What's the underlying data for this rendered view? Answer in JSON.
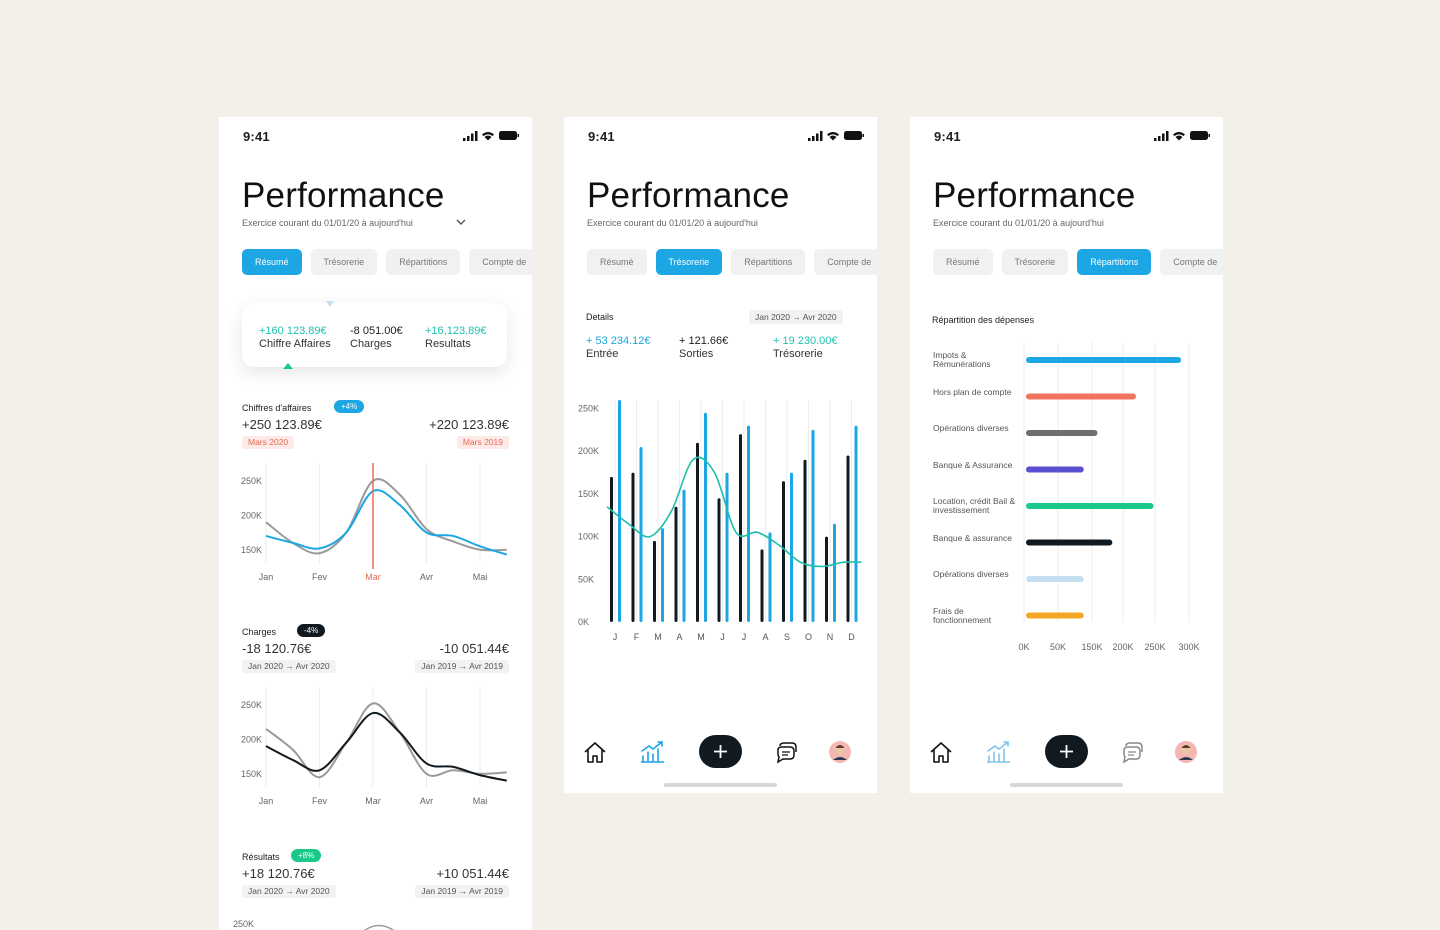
{
  "status_time": "9:41",
  "title": "Performance",
  "subtitle": "Exercice courant du 01/01/20 à aujourd'hui",
  "tabs": [
    "Résumé",
    "Trésorerie",
    "Répartitions",
    "Compte de"
  ],
  "colors": {
    "accent": "#1ca6e4",
    "teal": "#1fbfae",
    "green": "#19c98a",
    "red": "#e86a55",
    "dark": "#111a20",
    "background": "#f3efe9"
  },
  "screen1": {
    "summary": [
      {
        "value": "+160 123.89€",
        "label": "Chiffre Affaires"
      },
      {
        "value": "-8 051.00€",
        "label": "Charges"
      },
      {
        "value": "+16,123.89€",
        "label": "Resultats"
      }
    ],
    "ca": {
      "title": "Chiffres d'affaires",
      "badge": "+4%",
      "current": "+250 123.89€",
      "current_pill": "Mars 2020",
      "previous": "+220 123.89€",
      "previous_pill": "Mars 2019",
      "yticks": [
        "250K",
        "200K",
        "150K"
      ],
      "xticks": [
        "Jan",
        "Fev",
        "Mar",
        "Avr",
        "Mai"
      ]
    },
    "charges": {
      "title": "Charges",
      "badge": "-4%",
      "current": "-18 120.76€",
      "current_range": "Jan 2020  →  Avr 2020",
      "previous": "-10 051.44€",
      "previous_range": "Jan 2019  →  Avr 2019",
      "yticks": [
        "250K",
        "200K",
        "150K"
      ],
      "xticks": [
        "Jan",
        "Fev",
        "Mar",
        "Avr",
        "Mai"
      ]
    },
    "resultats": {
      "title": "Résultats",
      "badge": "+8%",
      "current": "+18 120.76€",
      "current_range": "Jan 2020  →  Avr 2020",
      "previous": "+10 051.44€",
      "previous_range": "Jan 2019  →  Avr 2019",
      "ytick": "250K"
    }
  },
  "screen2": {
    "details_label": "Details",
    "range": "Jan 2020  →  Avr 2020",
    "values": [
      {
        "value": "+ 53 234.12€",
        "label": "Entrée"
      },
      {
        "value": "+ 121.66€",
        "label": "Sorties"
      },
      {
        "value": "+ 19 230.00€",
        "label": "Trésorerie"
      }
    ]
  },
  "screen3": {
    "title": "Répartition des dépenses"
  },
  "nav": [
    "home-icon",
    "stats-icon",
    "add-icon",
    "messages-icon",
    "avatar"
  ],
  "chart_data": [
    {
      "type": "line",
      "title": "Chiffres d'affaires",
      "categories": [
        "Jan",
        "Fev",
        "Mar",
        "Avr",
        "Mai"
      ],
      "ylim": [
        125,
        270
      ],
      "yticks": [
        "250K",
        "200K",
        "150K"
      ],
      "marker": "Mar",
      "series": [
        {
          "color": "#9a9a9a",
          "x": [
            0,
            0.5,
            1,
            1.5,
            2,
            2.5,
            3,
            3.5,
            4,
            4.5
          ],
          "values": [
            190,
            160,
            145,
            175,
            250,
            230,
            180,
            162,
            150,
            150
          ]
        },
        {
          "color": "#1ca6e4",
          "x": [
            0,
            0.5,
            1,
            1.5,
            2,
            2.5,
            3,
            3.5,
            4,
            4.5
          ],
          "values": [
            170,
            160,
            152,
            175,
            235,
            215,
            175,
            170,
            155,
            143
          ]
        }
      ]
    },
    {
      "type": "line",
      "title": "Charges",
      "categories": [
        "Jan",
        "Fev",
        "Mar",
        "Avr",
        "Mai"
      ],
      "ylim": [
        125,
        270
      ],
      "yticks": [
        "250K",
        "200K",
        "150K"
      ],
      "series": [
        {
          "color": "#9a9a9a",
          "x": [
            0,
            0.5,
            1,
            1.5,
            2,
            2.5,
            3,
            3.5,
            4,
            4.5
          ],
          "values": [
            215,
            185,
            145,
            195,
            252,
            210,
            150,
            155,
            150,
            152
          ]
        },
        {
          "color": "#111a20",
          "x": [
            0,
            0.5,
            1,
            1.5,
            2,
            2.5,
            3,
            3.5,
            4,
            4.5
          ],
          "values": [
            190,
            170,
            155,
            195,
            238,
            210,
            165,
            160,
            148,
            140
          ]
        }
      ]
    },
    {
      "type": "bar",
      "title": "Details",
      "categories": [
        "J",
        "F",
        "M",
        "A",
        "M",
        "J",
        "J",
        "A",
        "S",
        "O",
        "N",
        "D"
      ],
      "ylim": [
        0,
        260
      ],
      "yticks": [
        "250K",
        "200K",
        "150K",
        "100K",
        "50K",
        "0K"
      ],
      "series": [
        {
          "color": "#111a20",
          "values": [
            170,
            175,
            95,
            135,
            210,
            145,
            220,
            85,
            165,
            190,
            100,
            195
          ]
        },
        {
          "color": "#1ca6e4",
          "values": [
            260,
            205,
            110,
            155,
            245,
            175,
            230,
            105,
            175,
            225,
            115,
            230
          ]
        },
        {
          "type": "line",
          "color": "#1fbfae",
          "values": [
            135,
            115,
            100,
            130,
            190,
            175,
            105,
            105,
            90,
            70,
            65,
            70
          ]
        }
      ]
    },
    {
      "type": "bar",
      "orientation": "horizontal",
      "title": "Répartition des dépenses",
      "categories": [
        "Impots & Rémunérations",
        "Hors plan de compte",
        "Opérations diverses",
        "Banque & Assurance",
        "Location, crédit Bail & investissement",
        "Banque & assurance",
        "Opérations diverses",
        "Frais de fonctionnement"
      ],
      "values": [
        282,
        200,
        130,
        105,
        232,
        157,
        105,
        105
      ],
      "colors": [
        "#1ca6e4",
        "#f2735d",
        "#6d6e71",
        "#5b4fd1",
        "#19c98a",
        "#111a20",
        "#c6dff0",
        "#f5a623"
      ],
      "xlim": [
        0,
        300
      ],
      "xticks": [
        "0K",
        "50K",
        "150K",
        "200K",
        "250K",
        "300K"
      ]
    }
  ]
}
